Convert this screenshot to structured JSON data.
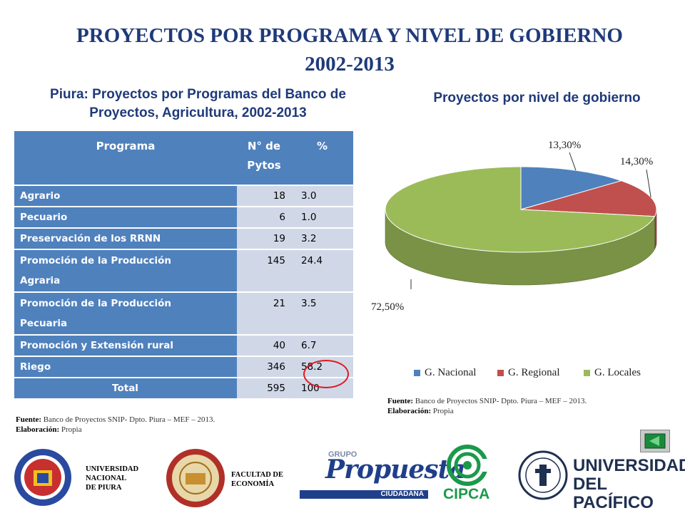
{
  "title": {
    "line1": "PROYECTOS POR PROGRAMA Y NIVEL DE GOBIERNO",
    "line2": "2002-2013"
  },
  "table": {
    "title_line1": "Piura: Proyectos por Programas del Banco de",
    "title_line2": "Proyectos, Agricultura, 2002-2013",
    "headers": {
      "programa": "Programa",
      "n_line1": "N° de",
      "n_line2": "Pytos",
      "pct": "%"
    },
    "rows": [
      {
        "line1": "Agrario",
        "line2": "",
        "n": "18",
        "pct": "3.0"
      },
      {
        "line1": "Pecuario",
        "line2": "",
        "n": "6",
        "pct": "1.0"
      },
      {
        "line1": "Preservación de los RRNN",
        "line2": "",
        "n": "19",
        "pct": "3.2"
      },
      {
        "line1": "Promoción de la Producción",
        "line2": "Agraria",
        "n": "145",
        "pct": "24.4"
      },
      {
        "line1": "Promoción de la Producción",
        "line2": "Pecuaria",
        "n": "21",
        "pct": "3.5"
      },
      {
        "line1": "Promoción y Extensión rural",
        "line2": "",
        "n": "40",
        "pct": "6.7"
      },
      {
        "line1": "Riego",
        "line2": "",
        "n": "346",
        "pct": "58.2"
      }
    ],
    "total": {
      "label": "Total",
      "n": "595",
      "pct": "100"
    },
    "source": {
      "label": "Fuente:",
      "text": " Banco de Proyectos SNIP- Dpto. Piura – MEF – 2013."
    },
    "elaboration": {
      "label": "Elaboración:",
      "text": " Propia"
    }
  },
  "chart_data": {
    "type": "pie",
    "title": "Proyectos por nivel de gobierno",
    "categories": [
      "G. Nacional",
      "G. Regional",
      "G. Locales"
    ],
    "values": [
      13.3,
      14.3,
      72.5
    ],
    "value_labels": [
      "13,30%",
      "14,30%",
      "72,50%"
    ],
    "colors": [
      "#4f81bd",
      "#c0504d",
      "#9bbb59"
    ],
    "legend": "bottom",
    "source": {
      "label": "Fuente:",
      "text": " Banco de Proyectos SNIP- Dpto. Piura – MEF – 2013."
    },
    "elaboration": {
      "label": "Elaboración:",
      "text": " Propia"
    }
  },
  "footer": {
    "udep_line1": "UNIVERSIDAD",
    "udep_line2": "NACIONAL",
    "udep_line3": "DE PIURA",
    "fac_line1": "FACULTAD DE",
    "fac_line2": "ECONOMÍA",
    "propuesta_small": "GRUPO",
    "propuesta_big": "Propuesta",
    "propuesta_bar": "CIUDADANA",
    "cipca": "CIPCA",
    "up_line1": "UNIVERSIDAD",
    "up_line2": "DEL PACÍFICO"
  }
}
